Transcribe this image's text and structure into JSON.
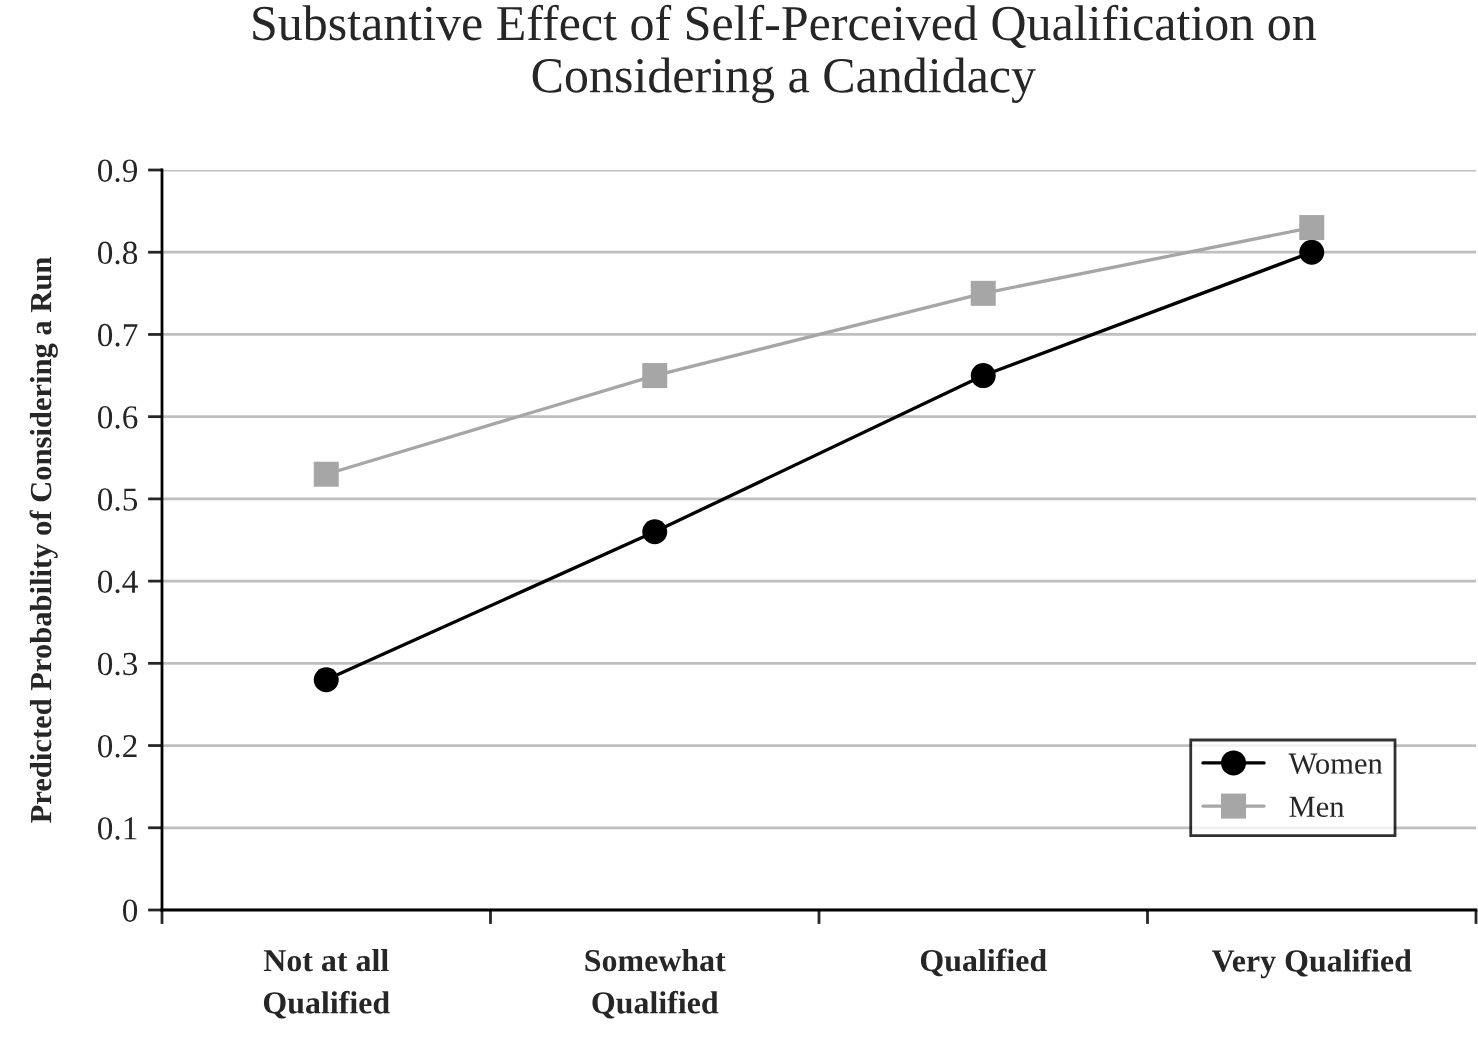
{
  "chart_data": {
    "type": "line",
    "title": "Substantive Effect of Self-Perceived Qualification on\nConsidering a Candidacy",
    "ylabel": "Predicted Probability of Considering a Run",
    "categories": [
      "Not at all\nQualified",
      "Somewhat\nQualified",
      "Qualified",
      "Very Qualified"
    ],
    "series": [
      {
        "name": "Women",
        "color": "#000000",
        "marker": "circle",
        "values": [
          0.28,
          0.46,
          0.65,
          0.8
        ]
      },
      {
        "name": "Men",
        "color": "#a6a6a6",
        "marker": "square",
        "values": [
          0.53,
          0.65,
          0.75,
          0.83
        ]
      }
    ],
    "ylim": [
      0,
      0.9
    ],
    "yticks": [
      0,
      0.1,
      0.2,
      0.3,
      0.4,
      0.5,
      0.6,
      0.7,
      0.8,
      0.9
    ],
    "grid": "y",
    "legend": "lower right",
    "line_style": "solid"
  }
}
